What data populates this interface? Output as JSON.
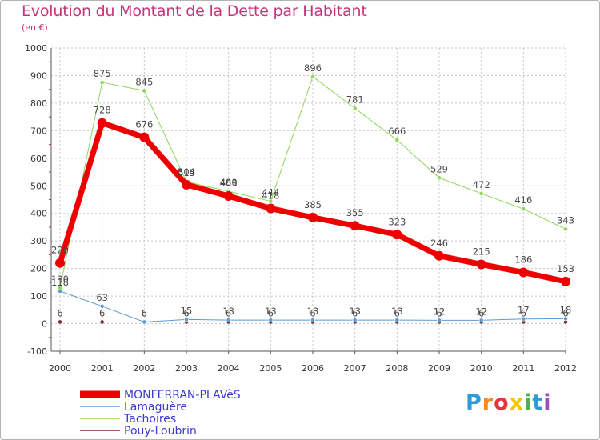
{
  "title": "Evolution du Montant de la Dette par Habitant",
  "unit": "(en €)",
  "brand": {
    "text": "Proxiti",
    "letter_colors": [
      "#2e9ad8",
      "#f08b1d",
      "#e8343c",
      "#f5c400",
      "#4ab34a",
      "#2e9ad8",
      "#9c50b8"
    ]
  },
  "chart_data": {
    "type": "line",
    "title": "Evolution du Montant de la Dette par Habitant",
    "ylabel": "(en €)",
    "xlabel": "",
    "ylim": [
      -100,
      1000
    ],
    "yticks": [
      -100,
      0,
      100,
      200,
      300,
      400,
      500,
      600,
      700,
      800,
      900,
      1000
    ],
    "categories": [
      "2000",
      "2001",
      "2002",
      "2003",
      "2004",
      "2005",
      "2006",
      "2007",
      "2008",
      "2009",
      "2010",
      "2011",
      "2012"
    ],
    "legend_position": "bottom-left",
    "series": [
      {
        "name": "Pouy-Loubrin",
        "color": "#7a2a2a",
        "width": 1,
        "values": [
          6,
          6,
          6,
          6,
          6,
          6,
          6,
          6,
          6,
          6,
          6,
          6,
          6
        ],
        "labels": [
          "6",
          "6",
          "6",
          "6",
          "6",
          "6",
          "6",
          "6",
          "6",
          "6",
          "6",
          "6",
          "6"
        ]
      },
      {
        "name": "Lamaguère",
        "color": "#5b9bd5",
        "width": 1,
        "values": [
          118,
          63,
          6,
          15,
          13,
          13,
          13,
          13,
          13,
          12,
          12,
          17,
          18
        ],
        "labels": [
          "118",
          "63",
          "6",
          "15",
          "13",
          "13",
          "13",
          "13",
          "13",
          "12",
          "12",
          "17",
          "18"
        ]
      },
      {
        "name": "Tachoires",
        "color": "#8ed65a",
        "width": 1,
        "values": [
          130,
          875,
          845,
          515,
          480,
          444,
          896,
          781,
          666,
          529,
          472,
          416,
          343
        ],
        "labels": [
          "130",
          "875",
          "845",
          "515",
          "480",
          "444",
          "896",
          "781",
          "666",
          "529",
          "472",
          "416",
          "343"
        ]
      },
      {
        "name": "MONFERRAN-PLAVèS",
        "color": "#ee0000",
        "width": 7,
        "values": [
          220,
          728,
          676,
          504,
          463,
          418,
          385,
          355,
          323,
          246,
          215,
          186,
          153
        ],
        "labels": [
          "220",
          "728",
          "676",
          "504",
          "463",
          "418",
          "385",
          "355",
          "323",
          "246",
          "215",
          "186",
          "153"
        ]
      }
    ],
    "legend_order": [
      "MONFERRAN-PLAVèS",
      "Lamaguère",
      "Tachoires",
      "Pouy-Loubrin"
    ]
  }
}
